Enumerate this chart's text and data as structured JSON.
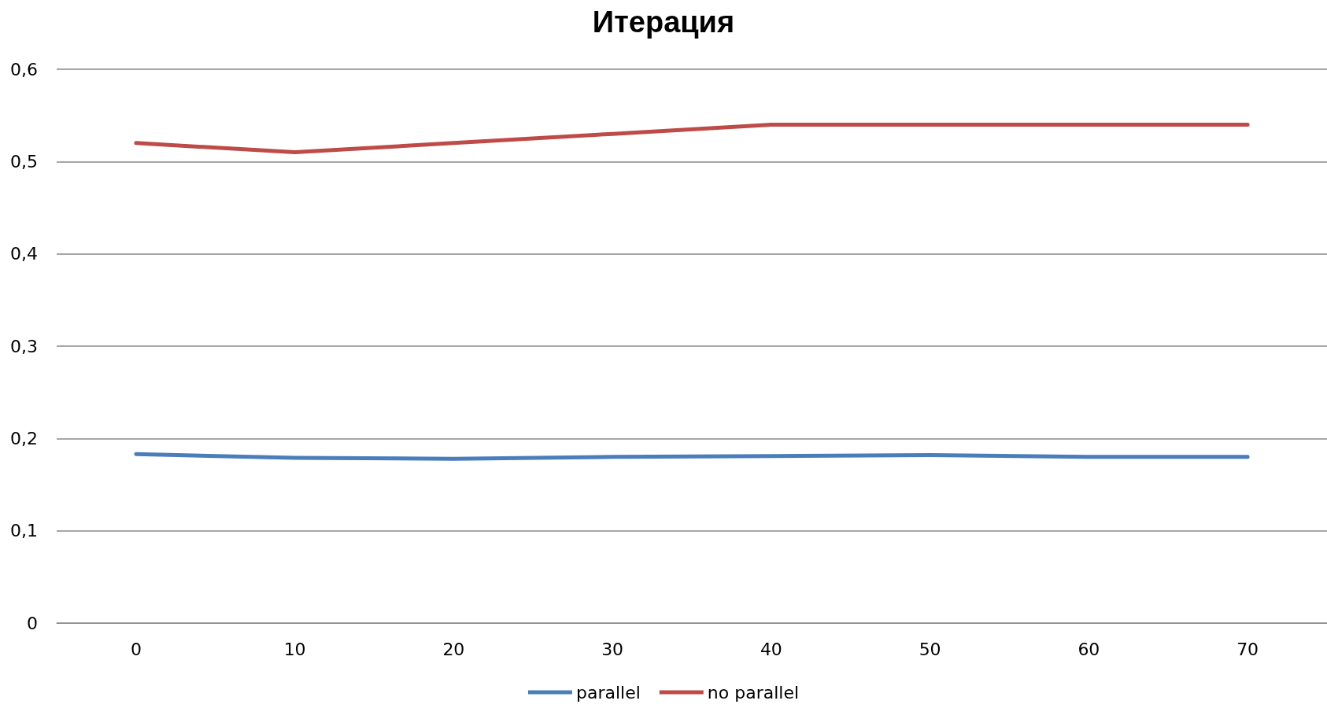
{
  "chart_data": {
    "type": "line",
    "title": "Итерация",
    "categories": [
      "0",
      "10",
      "20",
      "30",
      "40",
      "50",
      "60",
      "70"
    ],
    "series": [
      {
        "name": "parallel",
        "color": "#4a7ebb",
        "values": [
          0.183,
          0.179,
          0.178,
          0.18,
          0.181,
          0.182,
          0.18,
          0.18
        ]
      },
      {
        "name": "no parallel",
        "color": "#be4b48",
        "values": [
          0.52,
          0.51,
          0.52,
          0.53,
          0.54,
          0.54,
          0.54,
          0.54
        ]
      }
    ],
    "ylim": [
      0,
      0.6
    ],
    "yticks": [
      {
        "value": 0,
        "label": "0"
      },
      {
        "value": 0.1,
        "label": "0,1"
      },
      {
        "value": 0.2,
        "label": "0,2"
      },
      {
        "value": 0.3,
        "label": "0,3"
      },
      {
        "value": 0.4,
        "label": "0,4"
      },
      {
        "value": 0.5,
        "label": "0,5"
      },
      {
        "value": 0.6,
        "label": "0,6"
      }
    ],
    "grid": "y",
    "legend": "bottom",
    "marker": "none",
    "line_style": "solid"
  }
}
